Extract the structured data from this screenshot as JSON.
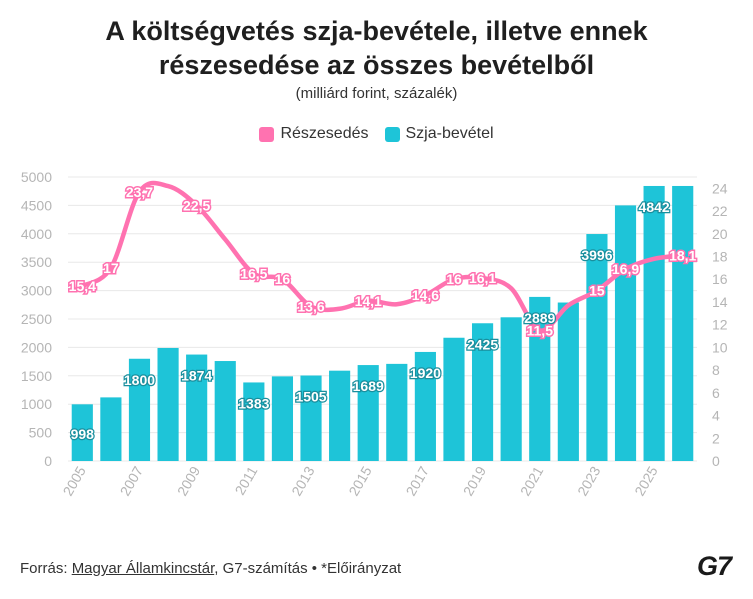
{
  "header": {
    "title_line1": "A költségvetés szja-bevétele, illetve ennek",
    "title_line2": "részesedése az összes bevételből",
    "subtitle": "(milliárd forint, százalék)"
  },
  "legend": {
    "share_label": "Részesedés",
    "revenue_label": "Szja-bevétel"
  },
  "footer": {
    "prefix": "Forrás: ",
    "source_link": "Magyar Államkincstár",
    "suffix": ", G7-számítás • *Előirányzat",
    "logo": "G7"
  },
  "colors": {
    "bar": "#1ec4d8",
    "line": "#ff72b0",
    "grid": "#e8e8e8",
    "axis_text": "#b5b5b5"
  },
  "chart_data": {
    "type": "bar+line",
    "years": [
      2005,
      2006,
      2007,
      2008,
      2009,
      2010,
      2011,
      2012,
      2013,
      2014,
      2015,
      2016,
      2017,
      2018,
      2019,
      2020,
      2021,
      2022,
      2023,
      2024,
      2025,
      2026
    ],
    "x_tick_labels": [
      "2005",
      "2007",
      "2009",
      "2011",
      "2013",
      "2015",
      "2017",
      "2019",
      "2021",
      "2023",
      "2025"
    ],
    "series": [
      {
        "name": "Szja-bevétel",
        "axis": "left",
        "kind": "bar",
        "values": [
          998,
          1120,
          1800,
          1990,
          1874,
          1760,
          1383,
          1490,
          1505,
          1590,
          1689,
          1710,
          1920,
          2170,
          2425,
          2530,
          2889,
          2790,
          3996,
          4500,
          4842,
          4842
        ],
        "data_labels": [
          "998",
          "",
          "1800",
          "",
          "1874",
          "",
          "1383",
          "",
          "1505",
          "",
          "1689",
          "",
          "1920",
          "",
          "2425",
          "",
          "2889",
          "",
          "3996",
          "",
          "4842",
          ""
        ]
      },
      {
        "name": "Részesedés",
        "axis": "right",
        "kind": "line",
        "values": [
          15.4,
          17,
          23.7,
          24.2,
          22.5,
          19.5,
          16.5,
          16,
          13.6,
          13.4,
          14.1,
          13.8,
          14.6,
          16,
          16.1,
          15.2,
          11.5,
          13.7,
          15,
          16.9,
          17.8,
          18.1
        ],
        "data_labels": [
          "15,4",
          "17",
          "23,7",
          "",
          "22,5",
          "",
          "16,5",
          "16",
          "13,6",
          "",
          "14,1",
          "",
          "14,6",
          "16",
          "16,1",
          "",
          "11,5",
          "",
          "15",
          "16,9",
          "",
          "18,1"
        ]
      }
    ],
    "left_axis": {
      "min": 0,
      "max": 5000,
      "ticks": [
        "0",
        "500",
        "1000",
        "1500",
        "2000",
        "2500",
        "3000",
        "3500",
        "4000",
        "4500",
        "5000"
      ]
    },
    "right_axis": {
      "min": 0,
      "max": 25,
      "ticks": [
        "0",
        "2",
        "4",
        "6",
        "8",
        "10",
        "12",
        "14",
        "16",
        "18",
        "20",
        "22",
        "24"
      ]
    },
    "grid": true,
    "legend_position": "top-center"
  }
}
